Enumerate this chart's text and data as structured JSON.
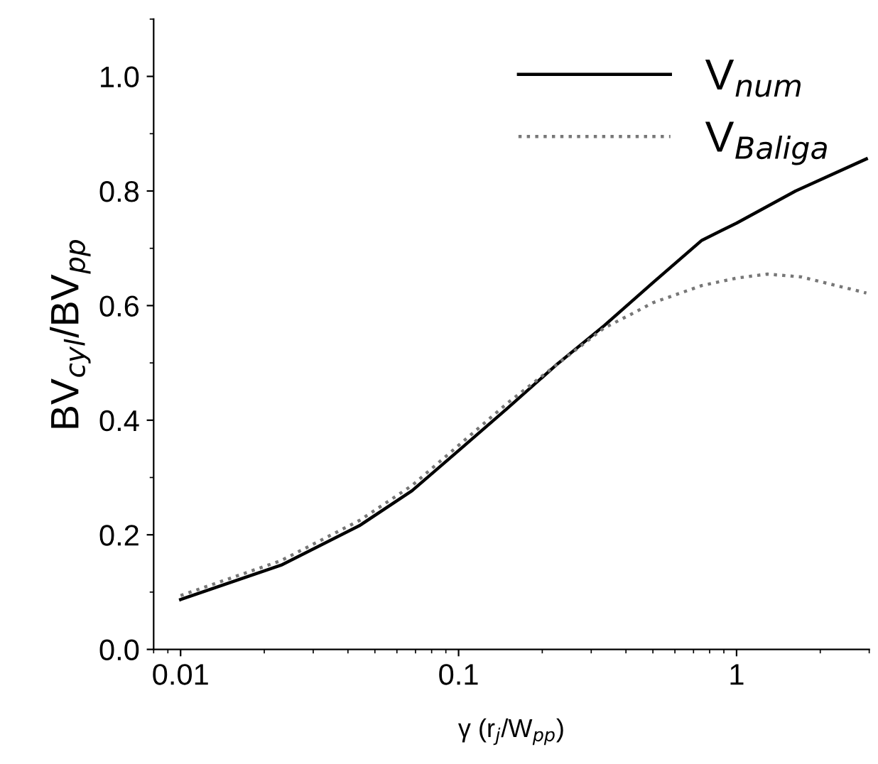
{
  "chart_data": {
    "type": "line",
    "xlabel": "γ (r$_{j}$/W$_{pp}$)",
    "ylabel": "BV$_{cyl}$/BV$_{pp}$",
    "log": "x",
    "legend": "top right",
    "grid": false,
    "xlim": [
      0.008,
      3
    ],
    "xticks": [
      0.01,
      0.1,
      1
    ],
    "ylim": [
      0,
      1.1
    ],
    "yticks": [
      {
        "value": 0,
        "label": "0.0"
      },
      {
        "value": 0.2,
        "label": "0.2"
      },
      {
        "value": 0.4,
        "label": "0.4"
      },
      {
        "value": 0.6,
        "label": "0.6"
      },
      {
        "value": 0.8,
        "label": "0.8"
      },
      {
        "value": 1.0,
        "label": "1.0"
      }
    ],
    "series": [
      {
        "name": "V$_{num}$",
        "color": "#000000",
        "line_style": "solid",
        "x": [
          0.01,
          0.023,
          0.044,
          0.068,
          0.1,
          0.15,
          0.224,
          0.334,
          0.5,
          0.75,
          1.0,
          1.63,
          2.93
        ],
        "values": [
          0.087,
          0.147,
          0.216,
          0.277,
          0.347,
          0.421,
          0.496,
          0.565,
          0.64,
          0.714,
          0.744,
          0.8,
          0.856
        ]
      },
      {
        "name": "V$_{Baliga}$",
        "color": "#777777",
        "line_style": "dotted",
        "x": [
          0.01,
          0.023,
          0.044,
          0.068,
          0.1,
          0.15,
          0.224,
          0.334,
          0.41,
          0.5,
          0.75,
          1.0,
          1.29,
          1.71,
          2.93
        ],
        "values": [
          0.094,
          0.155,
          0.225,
          0.286,
          0.356,
          0.43,
          0.496,
          0.561,
          0.583,
          0.605,
          0.635,
          0.648,
          0.655,
          0.65,
          0.622
        ]
      }
    ]
  }
}
